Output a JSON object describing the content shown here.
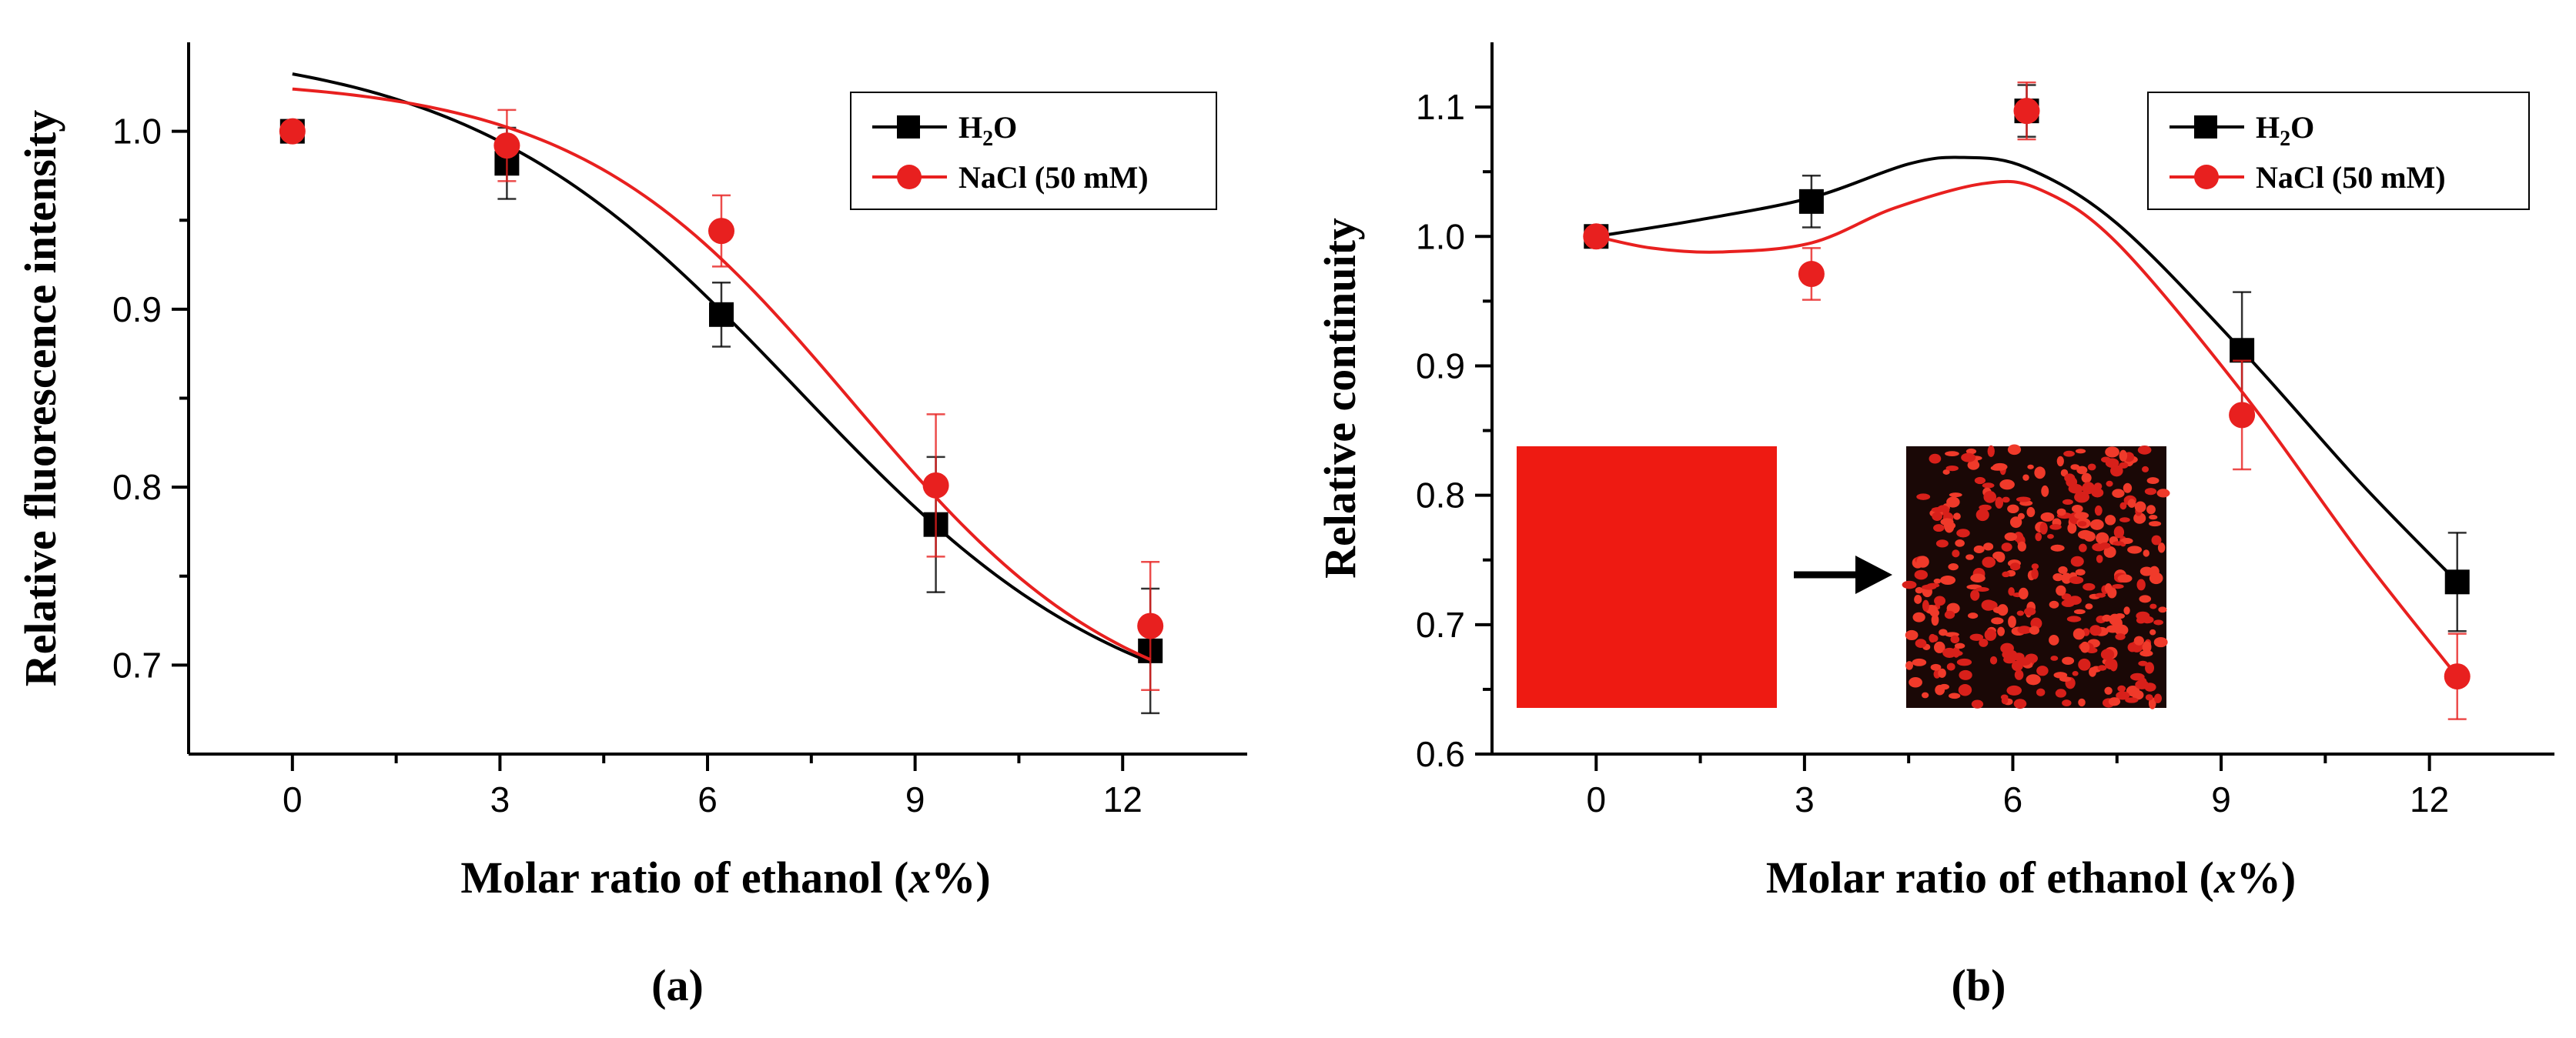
{
  "chart_data": [
    {
      "type": "scatter",
      "panel_label": "(a)",
      "xlabel": {
        "main": "Molar ratio of ethanol (",
        "ital": "x",
        "end": "%)"
      },
      "ylabel": "Relative fluorescence intensity",
      "xlim": [
        -1.5,
        13.8
      ],
      "ylim": [
        0.65,
        1.05
      ],
      "xticks": [
        0,
        3,
        6,
        9,
        12
      ],
      "yticks": [
        0.7,
        0.8,
        0.9,
        1.0
      ],
      "ytick_labels": [
        "0.7",
        "0.8",
        "0.9",
        "1.0"
      ],
      "legend_position": "top-right",
      "series": [
        {
          "name": "H2O",
          "legend_main": "H",
          "legend_sub": "2",
          "legend_end": "O",
          "color": "#000000",
          "marker": "square",
          "x": [
            0,
            3.1,
            6.2,
            9.3,
            12.4
          ],
          "y": [
            1.0,
            0.982,
            0.897,
            0.779,
            0.708
          ],
          "err": [
            0.004,
            0.02,
            0.018,
            0.038,
            0.035
          ],
          "fit": {
            "type": "boltzmann",
            "A1": 1.05,
            "A2": 0.66,
            "x0": 7.3,
            "dx": 2.4
          }
        },
        {
          "name": "NaCl (50 mM)",
          "legend_main": "NaCl (50 mM)",
          "legend_sub": "",
          "legend_end": "",
          "color": "#e8201f",
          "marker": "circle",
          "x": [
            0,
            3.1,
            6.2,
            9.3,
            12.4
          ],
          "y": [
            1.0,
            0.992,
            0.944,
            0.801,
            0.722
          ],
          "err": [
            0.004,
            0.02,
            0.02,
            0.04,
            0.036
          ],
          "fit": {
            "type": "boltzmann",
            "A1": 1.03,
            "A2": 0.665,
            "x0": 8.1,
            "dx": 2.0
          }
        }
      ]
    },
    {
      "type": "scatter",
      "panel_label": "(b)",
      "xlabel": {
        "main": "Molar ratio of ethanol (",
        "ital": "x",
        "end": "%)"
      },
      "ylabel": "Relative continuity",
      "xlim": [
        -1.5,
        13.8
      ],
      "ylim": [
        0.6,
        1.15
      ],
      "xticks": [
        0,
        3,
        6,
        9,
        12
      ],
      "yticks": [
        0.6,
        0.7,
        0.8,
        0.9,
        1.0,
        1.1
      ],
      "ytick_labels": [
        "0.6",
        "0.7",
        "0.8",
        "0.9",
        "1.0",
        "1.1"
      ],
      "legend_position": "top-right",
      "inset": "micrographs before and after (continuous film → fragmented)",
      "series": [
        {
          "name": "H2O",
          "legend_main": "H",
          "legend_sub": "2",
          "legend_end": "O",
          "color": "#000000",
          "marker": "square",
          "x": [
            0,
            3.1,
            6.2,
            9.3,
            12.4
          ],
          "y": [
            1.0,
            1.027,
            1.097,
            0.912,
            0.733
          ],
          "err": [
            0.004,
            0.02,
            0.02,
            0.045,
            0.038
          ],
          "fit": [
            [
              0,
              1.0
            ],
            [
              1.5,
              1.013
            ],
            [
              3.1,
              1.03
            ],
            [
              4.5,
              1.056
            ],
            [
              5.3,
              1.061
            ],
            [
              6.2,
              1.053
            ],
            [
              7.5,
              1.01
            ],
            [
              9.3,
              0.912
            ],
            [
              11,
              0.81
            ],
            [
              12.4,
              0.733
            ]
          ]
        },
        {
          "name": "NaCl (50 mM)",
          "legend_main": "NaCl (50 mM)",
          "legend_sub": "",
          "legend_end": "",
          "color": "#e8201f",
          "marker": "circle",
          "x": [
            0,
            3.1,
            6.2,
            9.3,
            12.4
          ],
          "y": [
            1.0,
            0.971,
            1.097,
            0.862,
            0.66
          ],
          "err": [
            0.004,
            0.02,
            0.022,
            0.042,
            0.033
          ],
          "fit": [
            [
              0,
              1.0
            ],
            [
              0.8,
              0.991
            ],
            [
              1.8,
              0.988
            ],
            [
              3.1,
              0.995
            ],
            [
              4.3,
              1.022
            ],
            [
              5.6,
              1.041
            ],
            [
              6.4,
              1.036
            ],
            [
              7.5,
              0.995
            ],
            [
              9.3,
              0.88
            ],
            [
              11,
              0.755
            ],
            [
              12.4,
              0.66
            ]
          ]
        }
      ]
    }
  ]
}
